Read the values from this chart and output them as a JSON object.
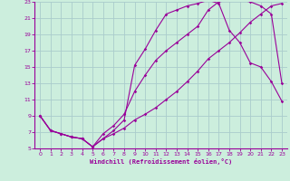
{
  "xlabel": "Windchill (Refroidissement éolien,°C)",
  "bg_color": "#cceedd",
  "grid_color": "#aacccc",
  "line_color": "#990099",
  "xlim": [
    -0.5,
    23.5
  ],
  "ylim": [
    5,
    23
  ],
  "yticks": [
    5,
    7,
    9,
    11,
    13,
    15,
    17,
    19,
    21,
    23
  ],
  "xticks": [
    0,
    1,
    2,
    3,
    4,
    5,
    6,
    7,
    8,
    9,
    10,
    11,
    12,
    13,
    14,
    15,
    16,
    17,
    18,
    19,
    20,
    21,
    22,
    23
  ],
  "curve1_x": [
    0,
    1,
    2,
    3,
    4,
    5,
    6,
    7,
    8,
    9,
    10,
    11,
    12,
    13,
    14,
    15,
    16,
    17,
    18,
    19,
    20,
    21,
    22,
    23
  ],
  "curve1_y": [
    9.0,
    7.2,
    6.8,
    6.4,
    6.2,
    5.2,
    6.2,
    6.8,
    7.5,
    8.5,
    9.2,
    10.0,
    11.0,
    12.0,
    13.2,
    14.5,
    16.0,
    17.0,
    18.0,
    19.2,
    20.5,
    21.5,
    22.5,
    22.8
  ],
  "curve2_x": [
    0,
    1,
    2,
    3,
    4,
    5,
    6,
    7,
    8,
    9,
    10,
    11,
    12,
    13,
    14,
    15,
    16,
    17,
    18,
    19,
    20,
    21,
    22,
    23
  ],
  "curve2_y": [
    9.0,
    7.2,
    6.8,
    6.4,
    6.2,
    5.2,
    6.2,
    7.2,
    8.5,
    15.2,
    17.2,
    19.5,
    21.5,
    22.0,
    22.5,
    22.8,
    23.2,
    22.8,
    19.5,
    18.0,
    15.5,
    15.0,
    13.2,
    10.8
  ],
  "curve3_x": [
    0,
    1,
    2,
    3,
    4,
    5,
    6,
    7,
    8,
    9,
    10,
    11,
    12,
    13,
    14,
    15,
    16,
    17,
    18,
    19,
    20,
    21,
    22,
    23
  ],
  "curve3_y": [
    9.0,
    7.2,
    6.8,
    6.4,
    6.2,
    5.2,
    6.8,
    7.8,
    9.2,
    12.0,
    14.0,
    15.8,
    17.0,
    18.0,
    19.0,
    20.0,
    22.0,
    23.0,
    23.2,
    23.2,
    23.0,
    22.5,
    21.5,
    13.0
  ]
}
